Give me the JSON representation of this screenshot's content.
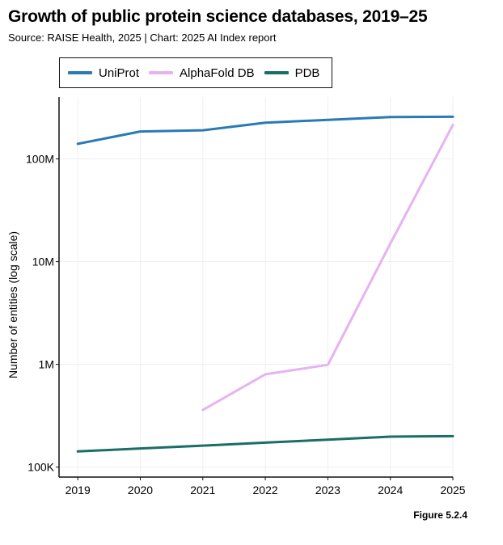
{
  "header": {
    "title": "Growth of public protein science databases, 2019–25",
    "subtitle": "Source: RAISE Health, 2025 | Chart: 2025 AI Index report"
  },
  "figure_label": "Figure 5.2.4",
  "chart_data": {
    "type": "line",
    "title": "Growth of public protein science databases, 2019–25",
    "xlabel": "",
    "ylabel": "Number of entities (log scale)",
    "yscale": "log",
    "ylim": [
      80000,
      400000000
    ],
    "xlim": [
      2018.7,
      2025
    ],
    "x_ticks": [
      2019,
      2020,
      2021,
      2022,
      2023,
      2024,
      2025
    ],
    "y_ticks": [
      {
        "value": 100000,
        "label": "100K"
      },
      {
        "value": 1000000,
        "label": "1M"
      },
      {
        "value": 10000000,
        "label": "10M"
      },
      {
        "value": 100000000,
        "label": "100M"
      }
    ],
    "grid": true,
    "legend_position": "top",
    "series": [
      {
        "name": "UniProt",
        "color": "#2a7ab5",
        "points": [
          [
            2019,
            140000000
          ],
          [
            2020,
            185000000
          ],
          [
            2021,
            190000000
          ],
          [
            2022,
            225000000
          ],
          [
            2023,
            240000000
          ],
          [
            2024,
            255000000
          ],
          [
            2025,
            257000000
          ]
        ]
      },
      {
        "name": "AlphaFold DB",
        "color": "#e7b2f2",
        "points": [
          [
            2021,
            360000
          ],
          [
            2022,
            800000
          ],
          [
            2023,
            990000
          ],
          [
            2024,
            15000000
          ],
          [
            2025,
            214000000
          ]
        ]
      },
      {
        "name": "PDB",
        "color": "#1b6d68",
        "points": [
          [
            2019,
            142000
          ],
          [
            2020,
            152000
          ],
          [
            2021,
            162000
          ],
          [
            2022,
            173000
          ],
          [
            2023,
            185000
          ],
          [
            2024,
            198000
          ],
          [
            2025,
            200000
          ]
        ]
      }
    ]
  }
}
